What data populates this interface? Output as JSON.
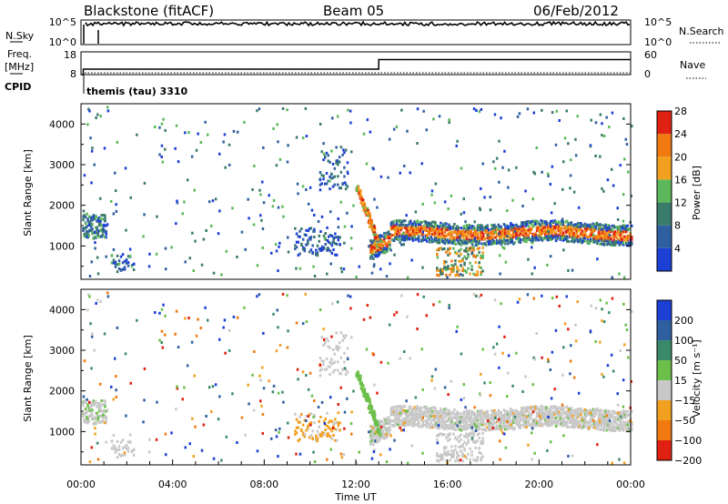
{
  "header": {
    "radar": "Blackstone (fitACF)",
    "beam": "Beam 05",
    "date": "06/Feb/2012"
  },
  "top_panels": {
    "nsky_label": "N.Sky",
    "nsky_ticks": [
      "10^5",
      "10^0"
    ],
    "nsearch_label": "N.Search",
    "nsearch_ticks": [
      "10^5",
      "10^0"
    ],
    "freq_label": "Freq.",
    "freq_unit": "[MHz]",
    "freq_ticks": [
      "18",
      "8"
    ],
    "nave_label": "Nave",
    "nave_ticks": [
      "60",
      "0"
    ],
    "cpid_label": "CPID",
    "cpid_value": "themis (tau) 3310"
  },
  "chart_data": [
    {
      "type": "line",
      "name": "noise",
      "x_range": [
        0,
        24
      ],
      "series": [
        {
          "values_desc": "N.Sky near top throughout",
          "level": 0.85
        },
        {
          "values_desc": "N.Search flat",
          "level": 0.12
        }
      ]
    },
    {
      "type": "line",
      "name": "frequency",
      "x": [
        0,
        0.1,
        0.1,
        13.0,
        13.0,
        24.0
      ],
      "freq_mhz": [
        8,
        8,
        10.4,
        10.4,
        14.6,
        14.6
      ],
      "nave_ylim": [
        0,
        60
      ],
      "freq_ylim": [
        8,
        18
      ]
    },
    {
      "type": "heatmap",
      "ylabel": "Slant Range [km]",
      "yticks": [
        1000,
        2000,
        3000,
        4000
      ],
      "ylim": [
        180,
        4500
      ],
      "colorbar_label": "Power [dB]",
      "colorbar_ticks": [
        "4",
        "8",
        "12",
        "16",
        "20",
        "24",
        "28"
      ],
      "colorbar_colors": [
        "#1c3fd6",
        "#2f5fa0",
        "#3a7a6a",
        "#5cb85a",
        "#f2a020",
        "#f07a10",
        "#e02010"
      ]
    },
    {
      "type": "heatmap",
      "ylabel": "Slant Range [km]",
      "xlabel": "Time UT",
      "yticks": [
        1000,
        2000,
        3000,
        4000
      ],
      "ylim": [
        180,
        4500
      ],
      "xticks": [
        "00:00",
        "04:00",
        "08:00",
        "12:00",
        "16:00",
        "20:00",
        "00:00"
      ],
      "colorbar_label": "Velocity [m s⁻¹]",
      "colorbar_ticks": [
        "200",
        "100",
        "50",
        "15",
        "−15",
        "−50",
        "−100",
        "−200"
      ],
      "colorbar_colors": [
        "#1c3fd6",
        "#2f5fa0",
        "#3a8a6a",
        "#6cc04a",
        "#c8c8c8",
        "#f2a020",
        "#f07a10",
        "#e02010"
      ]
    }
  ]
}
